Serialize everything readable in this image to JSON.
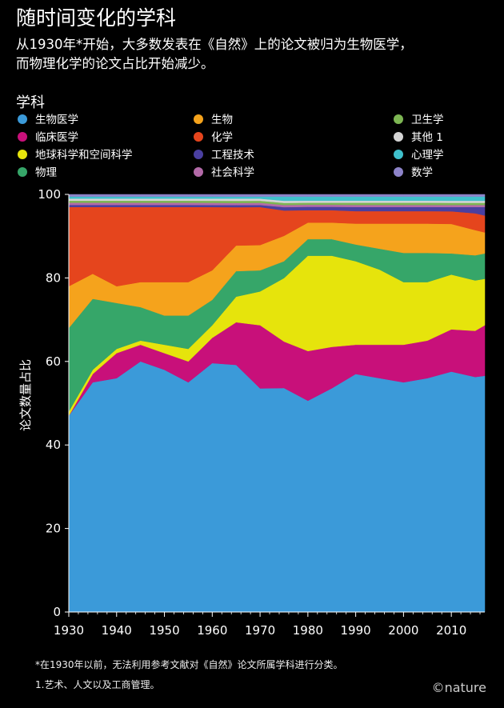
{
  "header": {
    "title": "随时间变化的学科",
    "subtitle_line1": "从1930年*开始，大多数发表在《自然》上的论文被归为生物医学，",
    "subtitle_line2": "而物理化学的论文占比开始减少。"
  },
  "legend_title": "学科",
  "footnotes": {
    "note1": "*在1930年以前，无法利用参考文献对《自然》论文所属学科进行分类。",
    "note2": "1.艺术、人文以及工商管理。"
  },
  "brand": "©nature",
  "chart_data": {
    "type": "area",
    "stacked": true,
    "ylabel": "论文数量占比",
    "xlabel": "",
    "xlim": [
      1930,
      2017
    ],
    "ylim": [
      0,
      100
    ],
    "xticks": [
      1930,
      1940,
      1950,
      1960,
      1970,
      1980,
      1990,
      2000,
      2010
    ],
    "xtick_labels": [
      "1930",
      "1940",
      "1950",
      "1960",
      "1970",
      "1980",
      "1990",
      "2000",
      "2010"
    ],
    "yticks": [
      0,
      20,
      40,
      60,
      80,
      100
    ],
    "ytick_labels": [
      "0",
      "20",
      "40",
      "60",
      "80",
      "100"
    ],
    "x": [
      1930,
      1935,
      1940,
      1945,
      1950,
      1955,
      1960,
      1965,
      1970,
      1975,
      1980,
      1985,
      1990,
      1995,
      2000,
      2005,
      2010,
      2015,
      2017
    ],
    "series": [
      {
        "name": "生物医学",
        "color": "#3b9ad9",
        "values": [
          47,
          55,
          56,
          60,
          58,
          55,
          59,
          58,
          53,
          53,
          51,
          54,
          57,
          56,
          55,
          56,
          57,
          56,
          56
        ]
      },
      {
        "name": "临床医学",
        "color": "#c8107a",
        "values": [
          0,
          2,
          6,
          4,
          4,
          5,
          6,
          10,
          15,
          11,
          12,
          10,
          7,
          8,
          9,
          9,
          10,
          11,
          12
        ]
      },
      {
        "name": "地球科学和空间科学",
        "color": "#e6e40c",
        "values": [
          1,
          1,
          1,
          1,
          2,
          3,
          3,
          6,
          8,
          15,
          23,
          22,
          20,
          18,
          15,
          14,
          13,
          12,
          11
        ]
      },
      {
        "name": "物理",
        "color": "#36a669",
        "values": [
          20,
          17,
          11,
          8,
          7,
          8,
          6,
          6,
          5,
          4,
          4,
          4,
          4,
          5,
          7,
          7,
          5,
          6,
          6
        ]
      },
      {
        "name": "生物",
        "color": "#f5a31c",
        "values": [
          10,
          6,
          4,
          6,
          8,
          8,
          7,
          6,
          6,
          6,
          4,
          4,
          5,
          6,
          7,
          7,
          7,
          6,
          5
        ]
      },
      {
        "name": "化学",
        "color": "#e5451d",
        "values": [
          19,
          16,
          19,
          18,
          18,
          18,
          15,
          9,
          9,
          6,
          3,
          3,
          3,
          3,
          3,
          3,
          3,
          4,
          4
        ]
      },
      {
        "name": "工程技术",
        "color": "#4a3fa0",
        "values": [
          0.5,
          0.5,
          0.5,
          0.5,
          0.5,
          0.5,
          0.5,
          0.5,
          0.5,
          0.8,
          0.8,
          0.8,
          1,
          1,
          1,
          1,
          1,
          1.5,
          2
        ]
      },
      {
        "name": "社会科学",
        "color": "#b36aa8",
        "values": [
          0.5,
          0.5,
          0.5,
          0.5,
          0.5,
          0.5,
          0.5,
          0.5,
          0.5,
          0.5,
          0.5,
          0.5,
          0.5,
          0.5,
          0.5,
          0.5,
          0.5,
          0.5,
          0.5
        ]
      },
      {
        "name": "卫生学",
        "color": "#7db653",
        "values": [
          0.5,
          0.5,
          0.5,
          0.5,
          0.5,
          0.5,
          0.5,
          0.5,
          0.5,
          0.5,
          0.5,
          0.5,
          0.5,
          0.5,
          0.5,
          0.5,
          0.5,
          0.5,
          0.5
        ]
      },
      {
        "name": "其他 1",
        "color": "#d4d4d4",
        "values": [
          0.5,
          0.5,
          0.5,
          0.5,
          0.5,
          0.5,
          0.5,
          0.5,
          0.5,
          0.5,
          0.5,
          0.5,
          0.5,
          0.5,
          0.5,
          0.5,
          0.5,
          0.5,
          0.5
        ]
      },
      {
        "name": "心理学",
        "color": "#3fc0cc",
        "values": [
          0.5,
          0.5,
          0.5,
          0.5,
          0.5,
          0.5,
          0.5,
          0.5,
          0.5,
          1,
          1,
          1,
          1,
          1,
          1,
          1,
          1,
          1,
          1
        ]
      },
      {
        "name": "数学",
        "color": "#8d83c9",
        "values": [
          0.5,
          0.5,
          0.5,
          0.5,
          0.5,
          0.5,
          0.5,
          0.5,
          0.5,
          0.5,
          0.5,
          0.5,
          0.5,
          0.5,
          0.5,
          0.5,
          0.5,
          0.5,
          0.5
        ]
      }
    ]
  }
}
